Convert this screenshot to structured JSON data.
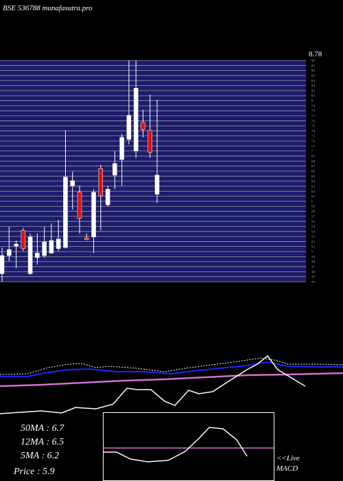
{
  "chart_data": {
    "type": "candlestick",
    "title": "BSE 536788 munafasutra.pro",
    "price_label": "8.78",
    "ylim": [
      4.4,
      8.8
    ],
    "yticks": [
      4.4,
      4.5,
      4.6,
      4.7,
      4.8,
      4.9,
      5,
      5.1,
      5.2,
      5.3,
      5.4,
      5.5,
      5.6,
      5.7,
      5.8,
      5.9,
      6,
      6.1,
      6.2,
      6.3,
      6.4,
      6.5,
      6.6,
      6.7,
      6.8,
      6.9,
      7,
      7.1,
      7.2,
      7.3,
      7.4,
      7.5,
      7.6,
      7.7,
      7.8,
      7.9,
      8,
      8.1,
      8.2,
      8.3,
      8.4,
      8.5,
      8.6,
      8.7,
      8.8
    ],
    "grid": true,
    "up_color": "#ffffff",
    "down_color": "#dd1111",
    "open": [
      4.56,
      4.92,
      5.11,
      5.42,
      4.56,
      4.88,
      4.92,
      4.97,
      5.06,
      5.08,
      6.31,
      6.18,
      5.27,
      5.29,
      6.65,
      5.93,
      6.52,
      6.83,
      7.23,
      7.0,
      7.57,
      7.41,
      6.14
    ],
    "high": [
      5.08,
      5.49,
      5.22,
      5.47,
      5.36,
      5.36,
      5.49,
      5.56,
      5.63,
      7.41,
      6.59,
      6.31,
      5.36,
      6.24,
      6.72,
      6.31,
      7.0,
      7.34,
      8.8,
      8.8,
      7.82,
      8.12,
      8.02
    ],
    "low": [
      4.4,
      4.81,
      4.67,
      5.01,
      4.54,
      4.74,
      4.88,
      4.95,
      5.01,
      5.06,
      5.83,
      5.36,
      5.22,
      4.97,
      5.42,
      5.9,
      6.24,
      6.31,
      7.13,
      6.86,
      7.27,
      6.86,
      5.97
    ],
    "close": [
      4.92,
      5.04,
      5.15,
      5.06,
      5.29,
      4.97,
      5.19,
      5.22,
      5.25,
      6.48,
      6.41,
      5.66,
      5.24,
      6.18,
      6.11,
      6.24,
      6.75,
      7.27,
      7.71,
      8.25,
      7.43,
      6.97,
      6.52
    ],
    "stats": [
      "50MA : 6.7",
      "12MA : 6.5",
      "5MA : 6.2",
      "Price   : 5.9"
    ],
    "live_label": "<<Live",
    "macd_label": "MACD"
  }
}
